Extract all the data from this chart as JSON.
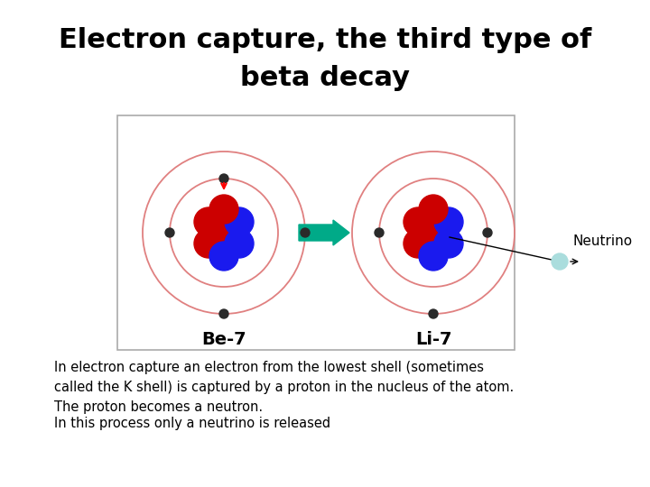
{
  "title_line1": "Electron capture, the third type of",
  "title_line2": "beta decay",
  "title_fontsize": 22,
  "body_text1": "In electron capture an electron from the lowest shell (sometimes\ncalled the K shell) is captured by a proton in the nucleus of the atom.\nThe proton becomes a neutron.",
  "body_text2": "In this process only a neutrino is released",
  "body_fontsize": 10.5,
  "neutrino_label": "Neutrino",
  "be7_label": "Be-7",
  "li7_label": "Li-7",
  "bg_color": "#ffffff",
  "box_edge_color": "#aaaaaa",
  "orbit_color": "#e08080",
  "proton_color": "#cc0000",
  "neutron_color": "#1a1aee",
  "electron_color": "#2a2a2a",
  "arrow_color": "#00aa88",
  "neutrino_color": "#aadddd",
  "neutrino_outline": "#888888",
  "line_color": "#000000"
}
